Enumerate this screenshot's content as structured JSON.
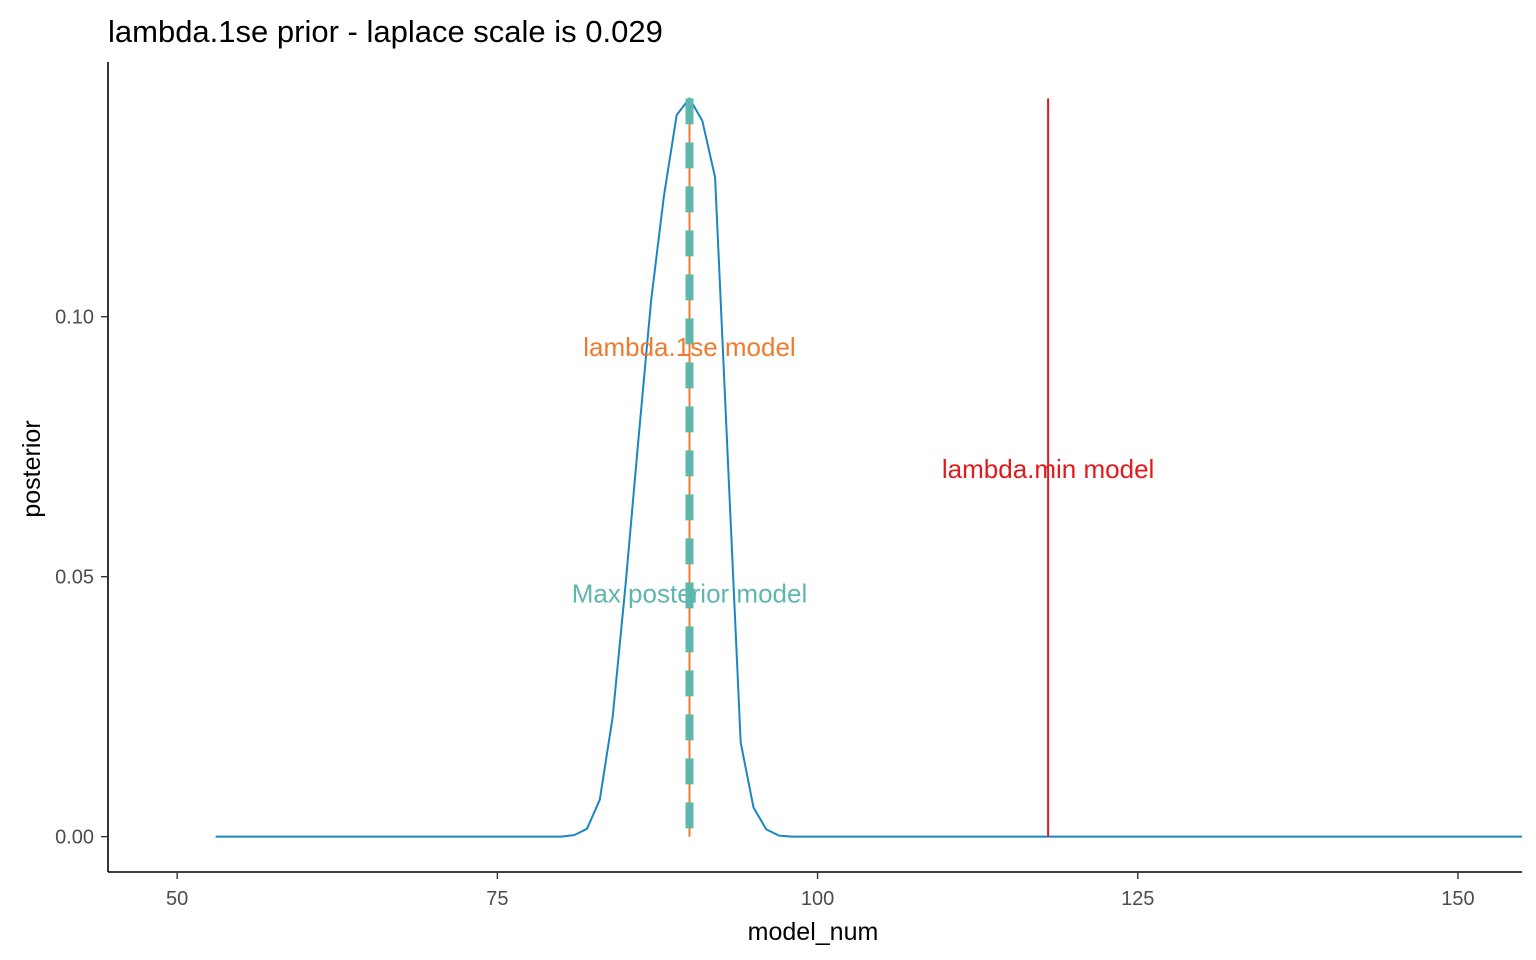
{
  "chart_data": {
    "type": "line",
    "title": "lambda.1se prior - laplace scale is 0.029",
    "xlabel": "model_num",
    "ylabel": "posterior",
    "xlim": [
      44.6,
      155
    ],
    "ylim": [
      -0.0068,
      0.149
    ],
    "x_ticks": [
      50,
      75,
      100,
      125,
      150
    ],
    "x_tick_labels": [
      "50",
      "75",
      "100",
      "125",
      "150"
    ],
    "y_ticks": [
      0,
      0.05,
      0.1
    ],
    "y_tick_labels": [
      "0.00",
      "0.05",
      "0.10"
    ],
    "grid": false,
    "series": [
      {
        "color": "#1a87c0",
        "x": [
          53,
          60,
          70,
          80,
          81,
          82,
          83,
          84,
          85,
          86,
          87,
          88,
          89,
          90,
          91,
          92,
          93,
          94,
          95,
          96,
          97,
          98,
          100,
          110,
          120,
          130,
          140,
          150,
          155
        ],
        "y": [
          0,
          0,
          0,
          0,
          0.0003,
          0.0015,
          0.0071,
          0.0229,
          0.0481,
          0.0759,
          0.1031,
          0.1232,
          0.1388,
          0.142,
          0.1377,
          0.1268,
          0.0723,
          0.0181,
          0.0056,
          0.0014,
          0.0002,
          0,
          0,
          0,
          0,
          0,
          0,
          0,
          0
        ]
      }
    ],
    "vlines": [
      {
        "label": "lambda.1se model",
        "x": 90,
        "color": "#ee7b30",
        "style": "solid",
        "label_y": 0.0942
      },
      {
        "label": "Max posterior model",
        "x": 90,
        "color": "#5eb7ad",
        "style": "dashed",
        "label_y": 0.0468
      },
      {
        "label": "lambda.min model",
        "x": 118,
        "color": "#e31a1c",
        "style": "solid",
        "label_y": 0.0707
      }
    ],
    "vline_ymax": 0.142
  }
}
